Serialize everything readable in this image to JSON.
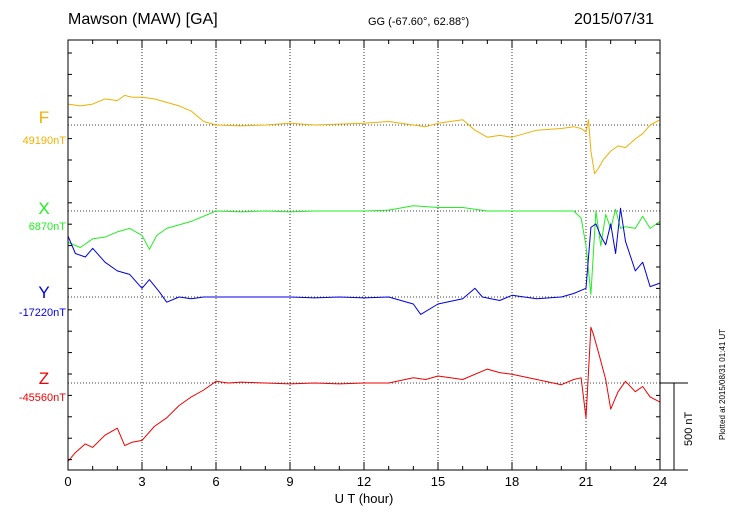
{
  "header": {
    "station": "Mawson (MAW)  [GA]",
    "coordinates": "GG (-67.60°,  62.88°)",
    "date": "2015/07/31"
  },
  "plotted_note": "Plotted at 2015/08/31 01:41 UT",
  "colors": {
    "F": "#f0b000",
    "X": "#22ee22",
    "Y": "#0000e0",
    "Z": "#ee0000",
    "axes": "#000000",
    "grid": "#000000"
  },
  "chart_data": {
    "type": "line",
    "title": "Mawson (MAW)  [GA]",
    "xlabel": "U T (hour)",
    "xlim": [
      0,
      24
    ],
    "xticks": [
      "0",
      "3",
      "6",
      "9",
      "12",
      "15",
      "18",
      "21",
      "24"
    ],
    "grid": true,
    "scale_bar": {
      "label": "500 nT",
      "value_nT": 500
    },
    "series": [
      {
        "name": "F",
        "baseline_label": "49190nT",
        "baseline_nT": 49190,
        "x": [
          0,
          0.5,
          1,
          1.5,
          2,
          2.3,
          2.6,
          3,
          3.5,
          4,
          4.5,
          5,
          5.5,
          6,
          7,
          8,
          9,
          10,
          11,
          12,
          13,
          14,
          14.5,
          15,
          15.5,
          16,
          16.5,
          17,
          17.5,
          18,
          19,
          20,
          20.5,
          20.8,
          21,
          21.1,
          21.2,
          21.35,
          21.5,
          21.7,
          22,
          22.3,
          22.6,
          23,
          23.3,
          23.6,
          24
        ],
        "values": [
          120,
          110,
          120,
          150,
          140,
          170,
          160,
          160,
          150,
          130,
          110,
          80,
          20,
          0,
          -5,
          0,
          10,
          0,
          5,
          10,
          20,
          0,
          -10,
          10,
          20,
          30,
          -30,
          -70,
          -60,
          -70,
          -30,
          -20,
          -10,
          -20,
          -40,
          30,
          -150,
          -280,
          -250,
          -200,
          -150,
          -120,
          -130,
          -80,
          -50,
          0,
          30
        ]
      },
      {
        "name": "X",
        "baseline_label": "6870nT",
        "baseline_nT": 6870,
        "x": [
          0,
          0.5,
          1,
          1.5,
          2,
          2.5,
          3,
          3.3,
          3.6,
          4,
          4.5,
          5,
          6,
          7,
          8,
          9,
          10,
          11,
          12,
          13,
          14,
          15,
          16,
          17,
          18,
          19,
          20,
          20.5,
          20.8,
          21,
          21.2,
          21.4,
          21.6,
          21.8,
          22,
          22.2,
          22.4,
          22.6,
          23,
          23.3,
          23.6,
          24
        ],
        "values": [
          -180,
          -210,
          -160,
          -150,
          -120,
          -100,
          -140,
          -220,
          -140,
          -100,
          -80,
          -60,
          0,
          -5,
          0,
          -5,
          0,
          0,
          0,
          5,
          30,
          20,
          20,
          0,
          0,
          0,
          0,
          0,
          -40,
          -200,
          -480,
          0,
          -200,
          -20,
          -100,
          10,
          -100,
          -90,
          -100,
          -30,
          -100,
          -60
        ]
      },
      {
        "name": "Y",
        "baseline_label": "-17220nT",
        "baseline_nT": -17220,
        "x": [
          0,
          0.3,
          0.7,
          1,
          1.5,
          2,
          2.5,
          3,
          3.3,
          3.7,
          4,
          4.5,
          5,
          5.5,
          6,
          7,
          8,
          9,
          10,
          11,
          12,
          13,
          14,
          14.3,
          15,
          16,
          16.5,
          16.8,
          17.5,
          18,
          19,
          20,
          20.5,
          21,
          21.2,
          21.4,
          21.6,
          21.8,
          22,
          22.2,
          22.4,
          22.6,
          23,
          23.3,
          23.6,
          24
        ],
        "values": [
          350,
          250,
          230,
          280,
          200,
          150,
          130,
          50,
          100,
          30,
          -30,
          0,
          -10,
          0,
          0,
          0,
          0,
          0,
          -5,
          0,
          -5,
          0,
          -40,
          -100,
          -40,
          -10,
          50,
          0,
          -20,
          10,
          -10,
          0,
          20,
          50,
          400,
          420,
          350,
          300,
          420,
          250,
          510,
          320,
          150,
          200,
          60,
          80
        ]
      },
      {
        "name": "Z",
        "baseline_label": "-45560nT",
        "baseline_nT": -45560,
        "x": [
          0,
          0.3,
          0.7,
          1,
          1.5,
          2,
          2.3,
          2.6,
          3,
          3.5,
          4,
          4.5,
          5,
          5.5,
          6,
          6.5,
          7,
          8,
          9,
          10,
          11,
          12,
          13,
          14,
          14.5,
          15,
          16,
          17,
          17.5,
          18,
          19,
          20,
          20.5,
          20.8,
          21,
          21.2,
          21.3,
          21.5,
          21.8,
          22,
          22.3,
          22.6,
          23,
          23.3,
          23.6,
          24
        ],
        "values": [
          -450,
          -400,
          -350,
          -370,
          -300,
          -260,
          -360,
          -340,
          -330,
          -250,
          -200,
          -130,
          -80,
          -40,
          10,
          0,
          5,
          0,
          -5,
          0,
          -5,
          0,
          0,
          30,
          20,
          40,
          20,
          80,
          60,
          50,
          20,
          -10,
          20,
          30,
          -200,
          320,
          280,
          180,
          20,
          -150,
          -50,
          10,
          -50,
          -20,
          -80,
          -110
        ]
      }
    ]
  },
  "labels": {
    "F": "F",
    "F_base": "49190nT",
    "X": "X",
    "X_base": "6870nT",
    "Y": "Y",
    "Y_base": "-17220nT",
    "Z": "Z",
    "Z_base": "-45560nT"
  }
}
